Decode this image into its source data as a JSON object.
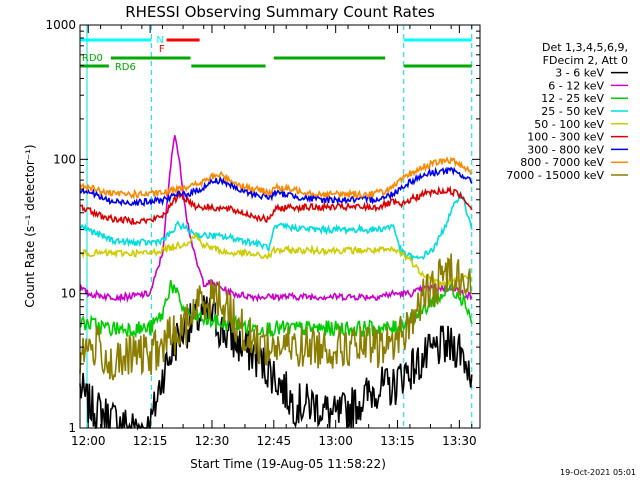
{
  "chart_data": {
    "type": "line",
    "title": "RHESSI Observing Summary Count Rates",
    "xlabel": "Start Time (19-Aug-05 11:58:22)",
    "ylabel": "Count Rate (s⁻¹ detector⁻¹)",
    "yscale": "log",
    "ylim": [
      1,
      1000
    ],
    "xlim_min": [
      -2,
      95
    ],
    "x_ticks": [
      {
        "label": "12:00",
        "min": 0
      },
      {
        "label": "12:15",
        "min": 15
      },
      {
        "label": "12:30",
        "min": 30
      },
      {
        "label": "12:45",
        "min": 45
      },
      {
        "label": "13:00",
        "min": 60
      },
      {
        "label": "13:15",
        "min": 75
      },
      {
        "label": "13:30",
        "min": 90
      }
    ],
    "y_ticks": [
      {
        "label": "1",
        "value": 1
      },
      {
        "label": "10",
        "value": 10
      },
      {
        "label": "100",
        "value": 100
      },
      {
        "label": "1000",
        "value": 1000
      }
    ],
    "legend_header": [
      "Det 1,3,4,5,6,9,",
      "FDecim 2, Att 0"
    ],
    "legend_position": "top-right",
    "footer_date": "19-Oct-2021 05:01",
    "x_unit": "minutes after 12:00",
    "series": [
      {
        "name": "3 - 6 keV",
        "color": "#000000",
        "points": [
          [
            -2,
            2
          ],
          [
            0,
            1.5
          ],
          [
            5,
            1.2
          ],
          [
            10,
            1
          ],
          [
            15,
            1
          ],
          [
            18,
            2.5
          ],
          [
            22,
            5
          ],
          [
            25,
            6
          ],
          [
            28,
            7
          ],
          [
            30,
            7
          ],
          [
            32,
            5.5
          ],
          [
            35,
            4.5
          ],
          [
            40,
            3.5
          ],
          [
            45,
            2.5
          ],
          [
            50,
            1.5
          ],
          [
            55,
            1.5
          ],
          [
            60,
            1.2
          ],
          [
            65,
            1.5
          ],
          [
            70,
            2
          ],
          [
            74,
            2
          ],
          [
            76,
            2.5
          ],
          [
            80,
            3
          ],
          [
            85,
            4
          ],
          [
            90,
            4
          ],
          [
            93,
            2.5
          ]
        ]
      },
      {
        "name": "6 - 12 keV",
        "color": "#cc00cc",
        "points": [
          [
            -2,
            11
          ],
          [
            0,
            10
          ],
          [
            5,
            9.5
          ],
          [
            10,
            9.5
          ],
          [
            15,
            10
          ],
          [
            18,
            20
          ],
          [
            20,
            90
          ],
          [
            21,
            160
          ],
          [
            22,
            100
          ],
          [
            24,
            35
          ],
          [
            26,
            18
          ],
          [
            28,
            12
          ],
          [
            30,
            12
          ],
          [
            35,
            10
          ],
          [
            40,
            9.5
          ],
          [
            45,
            9.5
          ],
          [
            50,
            9.5
          ],
          [
            55,
            9.5
          ],
          [
            60,
            9.5
          ],
          [
            65,
            9.5
          ],
          [
            70,
            9.5
          ],
          [
            74,
            10
          ],
          [
            78,
            10
          ],
          [
            82,
            11
          ],
          [
            86,
            11
          ],
          [
            89,
            11
          ],
          [
            91,
            10
          ],
          [
            93,
            9.5
          ]
        ]
      },
      {
        "name": "12 - 25 keV",
        "color": "#00cc00",
        "points": [
          [
            -2,
            6
          ],
          [
            0,
            6
          ],
          [
            5,
            5.5
          ],
          [
            10,
            5.5
          ],
          [
            15,
            5.5
          ],
          [
            18,
            7
          ],
          [
            20,
            12
          ],
          [
            22,
            9
          ],
          [
            24,
            7
          ],
          [
            28,
            6.5
          ],
          [
            32,
            6
          ],
          [
            36,
            6
          ],
          [
            40,
            5.5
          ],
          [
            45,
            5.5
          ],
          [
            50,
            5.5
          ],
          [
            55,
            5.5
          ],
          [
            60,
            5.5
          ],
          [
            65,
            5.5
          ],
          [
            70,
            5.5
          ],
          [
            74,
            5.5
          ],
          [
            76,
            6
          ],
          [
            80,
            7
          ],
          [
            84,
            9
          ],
          [
            88,
            11
          ],
          [
            90,
            10
          ],
          [
            92,
            8
          ],
          [
            93,
            6
          ]
        ]
      },
      {
        "name": "25 - 50 keV",
        "color": "#00dddd",
        "points": [
          [
            -2,
            32
          ],
          [
            0,
            30
          ],
          [
            3,
            27
          ],
          [
            6,
            25
          ],
          [
            10,
            24
          ],
          [
            15,
            24
          ],
          [
            18,
            25
          ],
          [
            20,
            28
          ],
          [
            22,
            33
          ],
          [
            24,
            30
          ],
          [
            27,
            27
          ],
          [
            30,
            27
          ],
          [
            35,
            26
          ],
          [
            40,
            24
          ],
          [
            44,
            22
          ],
          [
            45,
            30
          ],
          [
            47,
            32
          ],
          [
            50,
            31
          ],
          [
            55,
            30
          ],
          [
            60,
            30
          ],
          [
            65,
            30
          ],
          [
            70,
            30
          ],
          [
            74,
            32
          ],
          [
            76,
            20
          ],
          [
            80,
            18
          ],
          [
            84,
            22
          ],
          [
            88,
            40
          ],
          [
            90,
            55
          ],
          [
            91,
            50
          ],
          [
            93,
            30
          ]
        ]
      },
      {
        "name": "50 - 100 keV",
        "color": "#cccc00",
        "points": [
          [
            -2,
            20
          ],
          [
            0,
            20
          ],
          [
            3,
            20
          ],
          [
            6,
            20
          ],
          [
            10,
            20
          ],
          [
            15,
            20
          ],
          [
            20,
            22
          ],
          [
            24,
            24
          ],
          [
            26,
            27
          ],
          [
            28,
            23
          ],
          [
            30,
            22
          ],
          [
            34,
            20
          ],
          [
            38,
            20
          ],
          [
            42,
            19
          ],
          [
            44,
            19
          ],
          [
            45,
            21
          ],
          [
            48,
            21
          ],
          [
            55,
            21
          ],
          [
            60,
            21
          ],
          [
            65,
            21
          ],
          [
            70,
            21
          ],
          [
            74,
            21
          ],
          [
            76,
            20
          ],
          [
            78,
            18
          ],
          [
            80,
            15
          ],
          [
            83,
            13
          ],
          [
            85,
            12
          ],
          [
            88,
            12
          ],
          [
            90,
            13
          ],
          [
            92,
            13
          ],
          [
            93,
            13
          ]
        ]
      },
      {
        "name": "100 - 300 keV",
        "color": "#dd0000",
        "points": [
          [
            -2,
            45
          ],
          [
            0,
            42
          ],
          [
            3,
            38
          ],
          [
            6,
            36
          ],
          [
            10,
            35
          ],
          [
            15,
            35
          ],
          [
            18,
            38
          ],
          [
            20,
            45
          ],
          [
            22,
            55
          ],
          [
            24,
            50
          ],
          [
            26,
            45
          ],
          [
            28,
            44
          ],
          [
            30,
            44
          ],
          [
            35,
            42
          ],
          [
            40,
            38
          ],
          [
            44,
            35
          ],
          [
            45,
            42
          ],
          [
            48,
            44
          ],
          [
            55,
            44
          ],
          [
            60,
            44
          ],
          [
            65,
            44
          ],
          [
            70,
            44
          ],
          [
            74,
            48
          ],
          [
            76,
            45
          ],
          [
            78,
            50
          ],
          [
            82,
            56
          ],
          [
            86,
            58
          ],
          [
            88,
            58
          ],
          [
            90,
            55
          ],
          [
            92,
            48
          ],
          [
            93,
            42
          ]
        ]
      },
      {
        "name": "300 - 800 keV",
        "color": "#0000ee",
        "points": [
          [
            -2,
            60
          ],
          [
            0,
            58
          ],
          [
            3,
            52
          ],
          [
            6,
            48
          ],
          [
            10,
            48
          ],
          [
            15,
            48
          ],
          [
            18,
            50
          ],
          [
            20,
            52
          ],
          [
            22,
            55
          ],
          [
            25,
            56
          ],
          [
            28,
            62
          ],
          [
            30,
            68
          ],
          [
            32,
            70
          ],
          [
            34,
            66
          ],
          [
            36,
            60
          ],
          [
            40,
            55
          ],
          [
            44,
            52
          ],
          [
            45,
            56
          ],
          [
            48,
            55
          ],
          [
            52,
            52
          ],
          [
            56,
            50
          ],
          [
            60,
            50
          ],
          [
            64,
            50
          ],
          [
            68,
            50
          ],
          [
            72,
            52
          ],
          [
            74,
            56
          ],
          [
            76,
            62
          ],
          [
            78,
            68
          ],
          [
            82,
            78
          ],
          [
            86,
            82
          ],
          [
            88,
            82
          ],
          [
            90,
            78
          ],
          [
            92,
            72
          ],
          [
            93,
            66
          ]
        ]
      },
      {
        "name": "800 - 7000 keV",
        "color": "#ff8800",
        "points": [
          [
            -2,
            65
          ],
          [
            0,
            62
          ],
          [
            3,
            58
          ],
          [
            6,
            55
          ],
          [
            10,
            55
          ],
          [
            15,
            55
          ],
          [
            18,
            56
          ],
          [
            20,
            58
          ],
          [
            22,
            62
          ],
          [
            25,
            63
          ],
          [
            28,
            68
          ],
          [
            30,
            74
          ],
          [
            32,
            77
          ],
          [
            34,
            72
          ],
          [
            36,
            66
          ],
          [
            40,
            60
          ],
          [
            44,
            57
          ],
          [
            45,
            62
          ],
          [
            48,
            60
          ],
          [
            52,
            58
          ],
          [
            56,
            55
          ],
          [
            60,
            55
          ],
          [
            64,
            55
          ],
          [
            68,
            55
          ],
          [
            72,
            58
          ],
          [
            74,
            62
          ],
          [
            76,
            70
          ],
          [
            78,
            78
          ],
          [
            82,
            90
          ],
          [
            86,
            97
          ],
          [
            88,
            98
          ],
          [
            90,
            92
          ],
          [
            92,
            85
          ],
          [
            93,
            78
          ]
        ]
      },
      {
        "name": "7000 - 15000 keV",
        "color": "#8b7d00",
        "points": [
          [
            -2,
            3.5
          ],
          [
            0,
            4
          ],
          [
            3,
            4
          ],
          [
            5,
            3
          ],
          [
            8,
            3
          ],
          [
            10,
            3.5
          ],
          [
            15,
            3.5
          ],
          [
            18,
            4
          ],
          [
            20,
            5
          ],
          [
            22,
            5
          ],
          [
            24,
            6
          ],
          [
            26,
            8
          ],
          [
            28,
            9
          ],
          [
            30,
            9.5
          ],
          [
            32,
            9
          ],
          [
            34,
            8
          ],
          [
            36,
            6
          ],
          [
            38,
            5
          ],
          [
            40,
            4.5
          ],
          [
            44,
            4
          ],
          [
            48,
            4
          ],
          [
            52,
            4
          ],
          [
            56,
            4
          ],
          [
            60,
            4
          ],
          [
            64,
            4
          ],
          [
            68,
            4
          ],
          [
            72,
            4
          ],
          [
            74,
            4.5
          ],
          [
            76,
            5
          ],
          [
            78,
            6
          ],
          [
            80,
            8
          ],
          [
            82,
            10
          ],
          [
            84,
            11
          ],
          [
            86,
            14
          ],
          [
            88,
            15
          ],
          [
            90,
            14
          ],
          [
            92,
            12
          ],
          [
            93,
            10
          ]
        ]
      }
    ],
    "state_bars": [
      {
        "label": "N",
        "color": "#00ffff",
        "row": "top",
        "segments": [
          [
            -2,
            15.3
          ],
          [
            76.5,
            93
          ]
        ]
      },
      {
        "label": "F",
        "color": "#ff0000",
        "row": "top",
        "segments": [
          [
            19,
            27
          ]
        ]
      },
      {
        "label": "RD0",
        "color": "#00aa00",
        "row": "middle",
        "segments": [
          [
            5.5,
            24.8
          ],
          [
            45,
            72
          ]
        ]
      },
      {
        "label": "RD6",
        "color": "#00aa00",
        "row": "bottom",
        "segments": [
          [
            -2,
            5
          ],
          [
            25,
            43
          ],
          [
            76.5,
            93
          ]
        ]
      }
    ],
    "saa_lines_min": [
      -0.3,
      15.3,
      76.5,
      93
    ]
  }
}
